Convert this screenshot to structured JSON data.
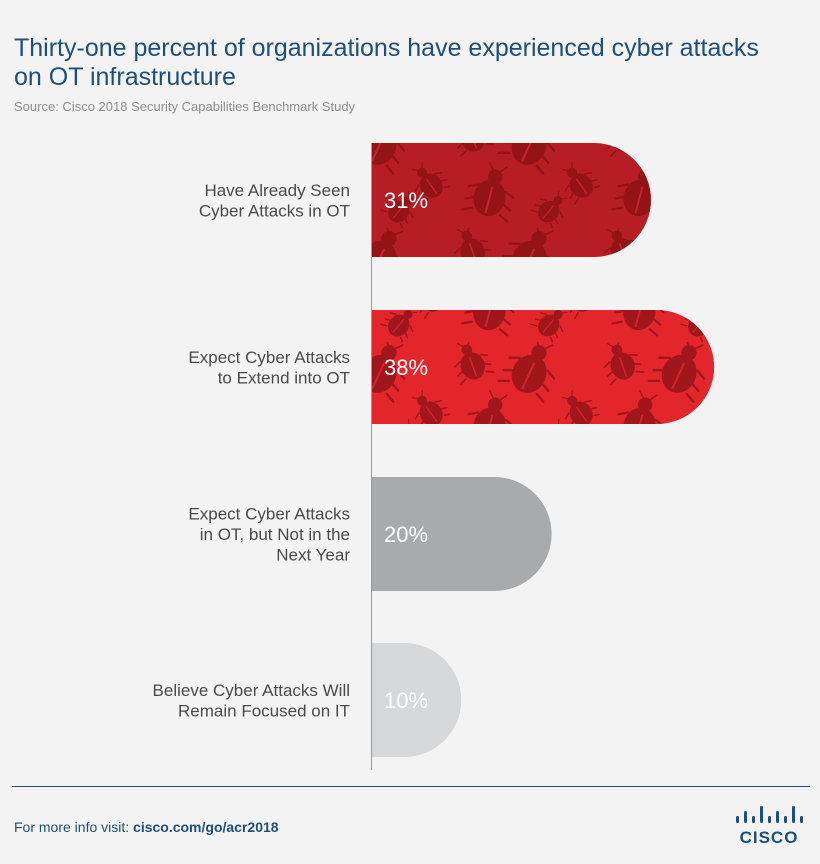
{
  "header": {
    "title": "Thirty-one percent of organizations have experienced cyber attacks on OT infrastructure",
    "source": "Source: Cisco 2018 Security Capabilities Benchmark Study"
  },
  "chart_data": {
    "type": "bar",
    "orientation": "horizontal",
    "title": "Thirty-one percent of organizations have experienced cyber attacks on OT infrastructure",
    "categories": [
      [
        "Have Already Seen",
        "Cyber Attacks in OT"
      ],
      [
        "Expect Cyber Attacks",
        "to Extend into OT"
      ],
      [
        "Expect Cyber Attacks",
        "in OT, but Not in the",
        "Next Year"
      ],
      [
        "Believe Cyber Attacks Will",
        "Remain Focused on IT"
      ]
    ],
    "values": [
      31,
      38,
      20,
      10
    ],
    "value_labels": [
      "31%",
      "38%",
      "20%",
      "10%"
    ],
    "unit": "%",
    "xlim": [
      0,
      40
    ],
    "colors": [
      "#b71d24",
      "#e3262b",
      "#a9aaac",
      "#d6d8da"
    ],
    "bug_pattern": [
      true,
      true,
      false,
      false
    ],
    "bug_color": "#8f1216"
  },
  "footer": {
    "prefix": "For more info visit: ",
    "link": "cisco.com/go/acr2018",
    "logo_text": "CISCO"
  }
}
